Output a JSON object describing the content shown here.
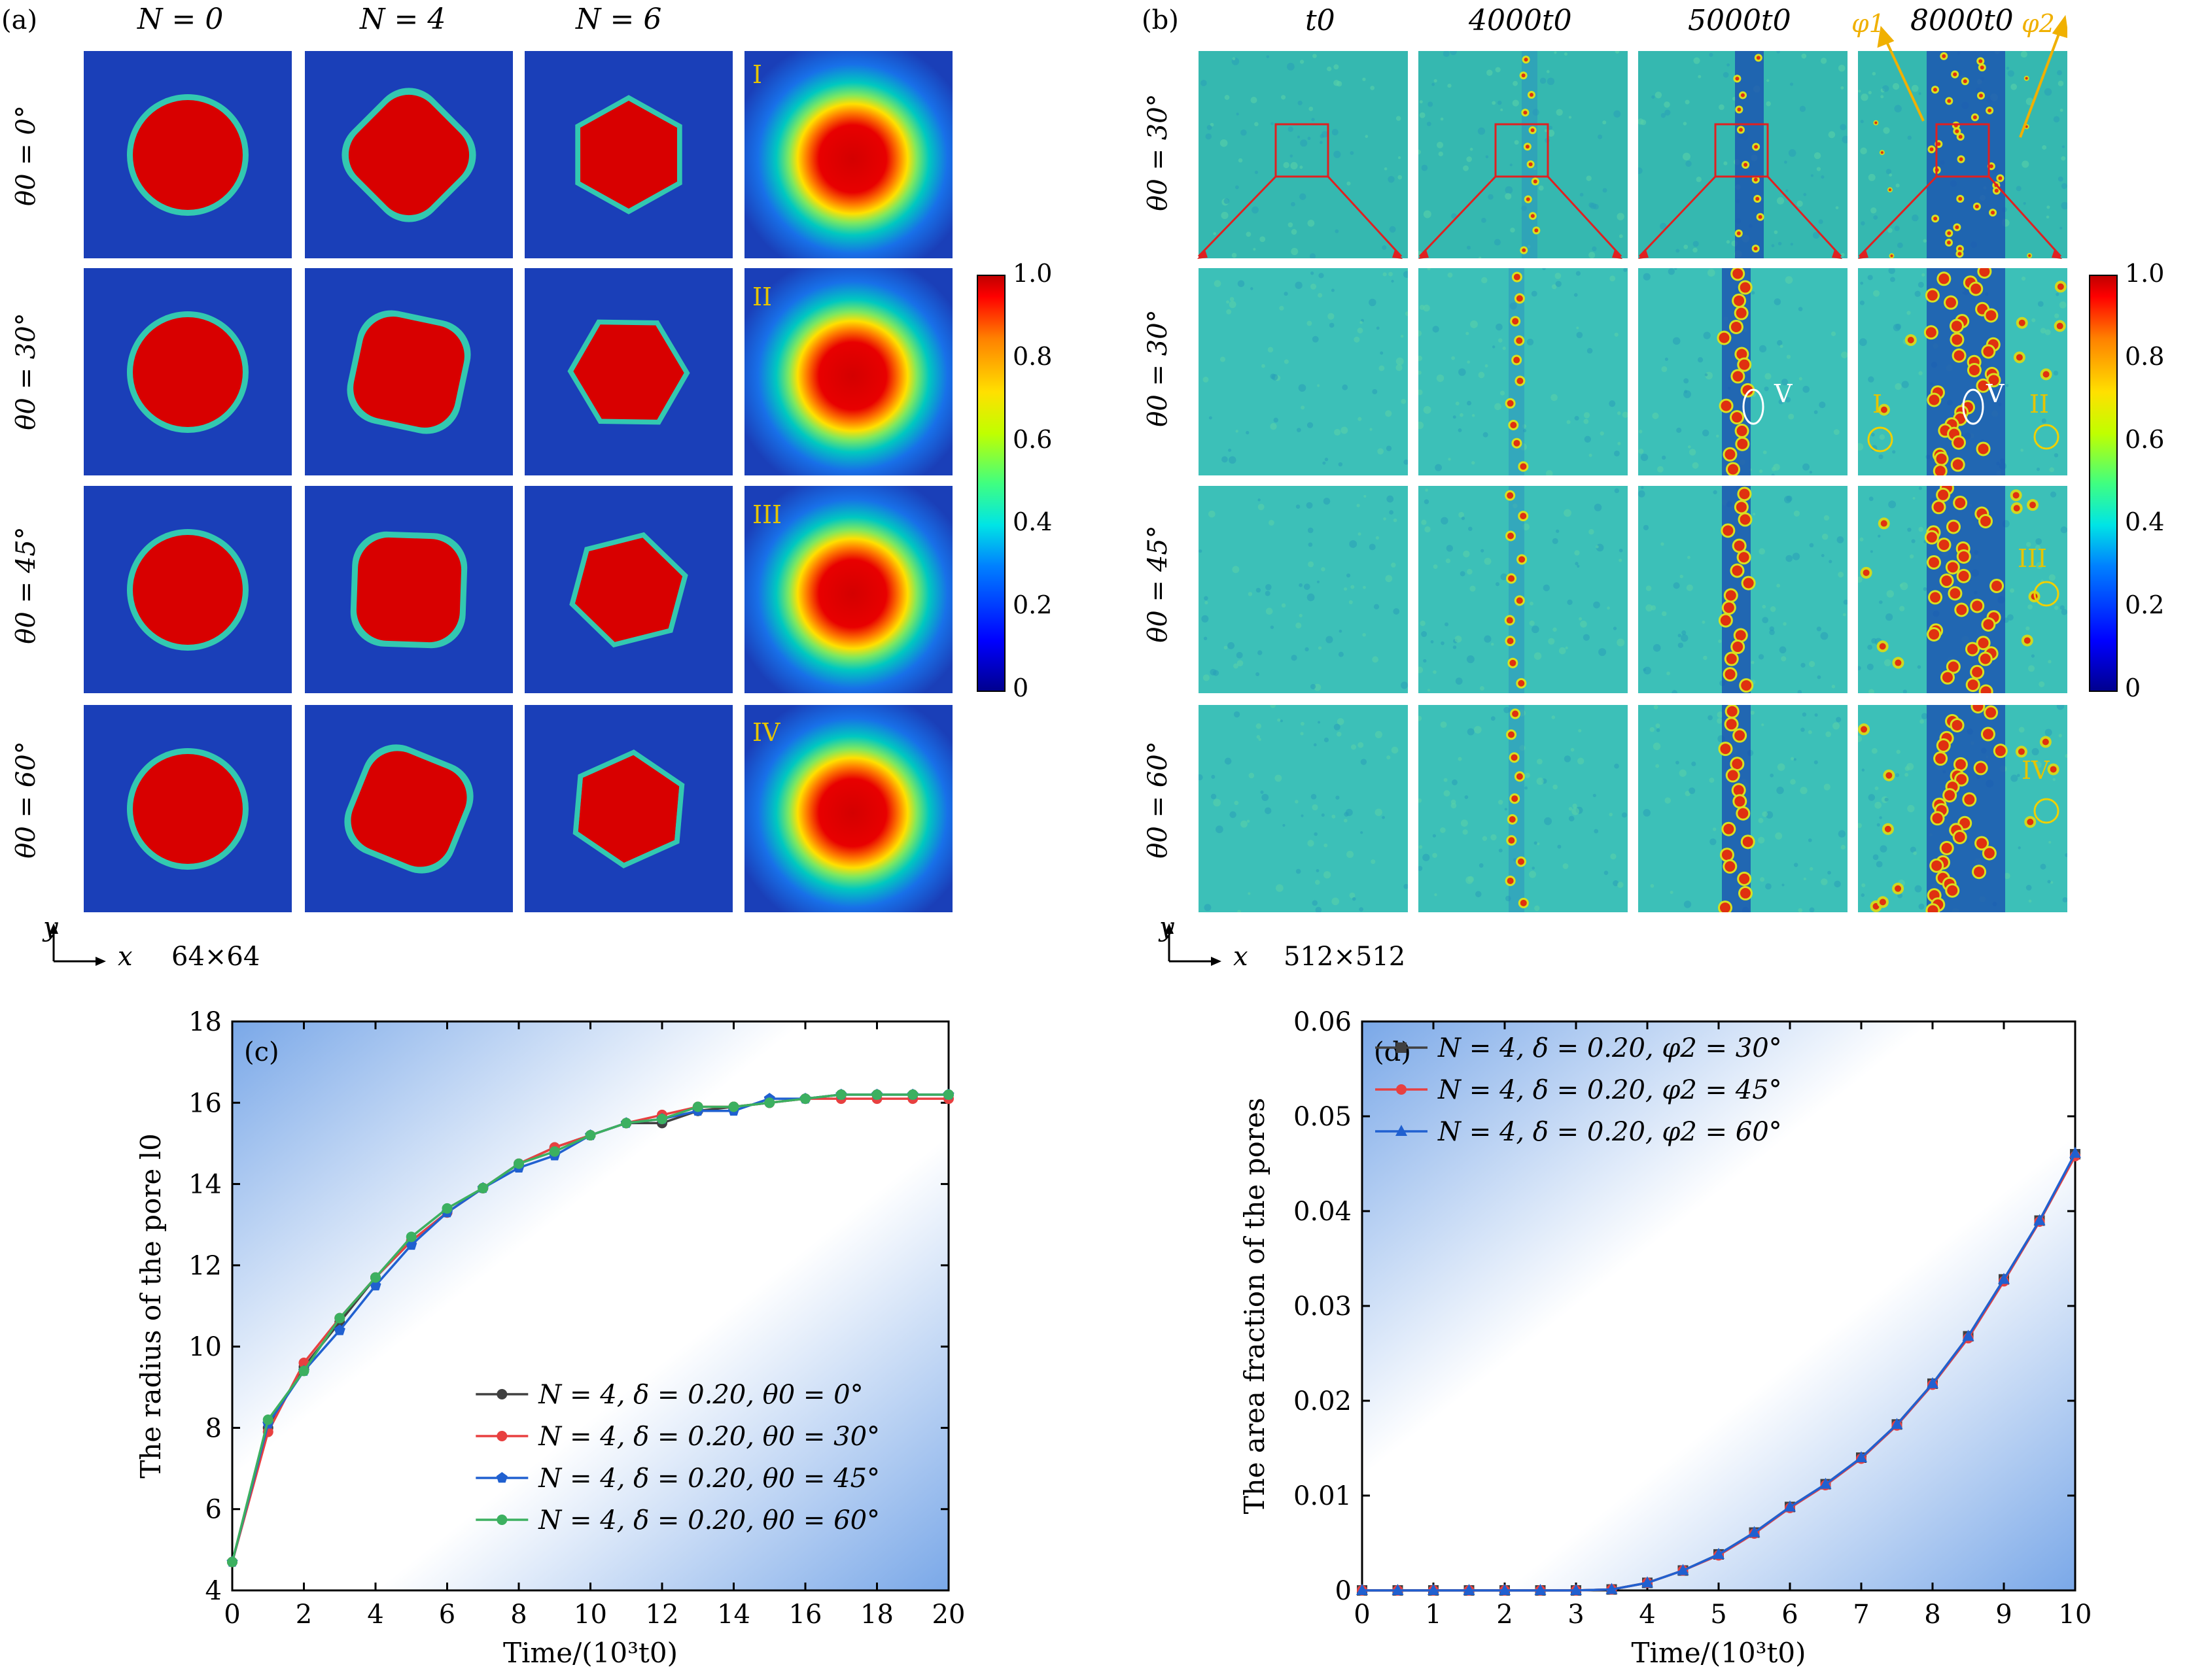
{
  "panel_a": {
    "tag": "(a)",
    "col_headers": [
      "N = 0",
      "N = 4",
      "N = 6"
    ],
    "row_labels": [
      "θ0 = 0°",
      "θ0 = 30°",
      "θ0 = 45°",
      "θ0 = 60°"
    ],
    "roman": [
      "I",
      "II",
      "III",
      "IV"
    ],
    "axis_y": "y",
    "axis_x": "x",
    "size": "64×64"
  },
  "panel_b": {
    "tag": "(b)",
    "col_headers": [
      "t0",
      "4000t0",
      "5000t0",
      "8000t0"
    ],
    "phi1": "φ1",
    "phi2": "φ2",
    "row_labels": [
      "θ0 = 30°",
      "θ0 = 30°",
      "θ0 = 45°",
      "θ0 = 60°"
    ],
    "marks": [
      "V",
      "V",
      "I",
      "II",
      "III",
      "IV"
    ],
    "axis_y": "y",
    "axis_x": "x",
    "size": "512×512"
  },
  "colorbar": {
    "ticks": [
      "1.0",
      "0.8",
      "0.6",
      "0.4",
      "0.2",
      "0"
    ]
  },
  "chart_data": [
    {
      "type": "line",
      "panel": "(c)",
      "xlabel": "Time/(10³t0)",
      "ylabel": "The radius of the pore l0",
      "xlim": [
        0,
        20
      ],
      "ylim": [
        4,
        18
      ],
      "xticks": [
        0,
        2,
        4,
        6,
        8,
        10,
        12,
        14,
        16,
        18,
        20
      ],
      "yticks": [
        4,
        6,
        8,
        10,
        12,
        14,
        16,
        18
      ],
      "legend_position": "bottom-right",
      "x": [
        0,
        1,
        2,
        3,
        4,
        5,
        6,
        7,
        8,
        9,
        10,
        11,
        12,
        13,
        14,
        15,
        16,
        17,
        18,
        19,
        20
      ],
      "series": [
        {
          "name": "N = 4, δ = 0.20, θ0 = 0°",
          "color": "#404040",
          "marker": "circle",
          "values": [
            4.7,
            8.0,
            9.5,
            10.6,
            11.7,
            12.6,
            13.3,
            13.9,
            14.5,
            14.9,
            15.2,
            15.5,
            15.5,
            15.8,
            15.9,
            16.0,
            16.1,
            16.2,
            16.2,
            16.2,
            16.2
          ]
        },
        {
          "name": "N = 4, δ = 0.20, θ0 = 30°",
          "color": "#e84040",
          "marker": "circle",
          "values": [
            4.7,
            7.9,
            9.6,
            10.7,
            11.7,
            12.6,
            13.3,
            13.9,
            14.5,
            14.9,
            15.2,
            15.5,
            15.7,
            15.9,
            15.9,
            16.0,
            16.1,
            16.1,
            16.1,
            16.1,
            16.1
          ]
        },
        {
          "name": "N = 4, δ = 0.20, θ0 = 45°",
          "color": "#2060d0",
          "marker": "pentagon",
          "values": [
            4.7,
            8.1,
            9.4,
            10.4,
            11.5,
            12.5,
            13.3,
            13.9,
            14.4,
            14.7,
            15.2,
            15.5,
            15.6,
            15.8,
            15.8,
            16.1,
            16.1,
            16.2,
            16.2,
            16.2,
            16.2
          ]
        },
        {
          "name": "N = 4, δ = 0.20, θ0 = 60°",
          "color": "#3cb060",
          "marker": "circle",
          "values": [
            4.7,
            8.2,
            9.4,
            10.7,
            11.7,
            12.7,
            13.4,
            13.9,
            14.5,
            14.8,
            15.2,
            15.5,
            15.6,
            15.9,
            15.9,
            16.0,
            16.1,
            16.2,
            16.2,
            16.2,
            16.2
          ]
        }
      ]
    },
    {
      "type": "line",
      "panel": "(d)",
      "xlabel": "Time/(10³t0)",
      "ylabel": "The area fraction of the pores",
      "xlim": [
        0,
        10
      ],
      "ylim": [
        0,
        0.06
      ],
      "xticks": [
        0,
        1,
        2,
        3,
        4,
        5,
        6,
        7,
        8,
        9,
        10
      ],
      "yticks": [
        "0",
        "0.01",
        "0.02",
        "0.03",
        "0.04",
        "0.05",
        "0.06"
      ],
      "legend_position": "top-left",
      "x": [
        0,
        0.5,
        1,
        1.5,
        2,
        2.5,
        3,
        3.5,
        4,
        4.5,
        5,
        5.5,
        6,
        6.5,
        7,
        7.5,
        8,
        8.5,
        9,
        9.5,
        10
      ],
      "series": [
        {
          "name": "N = 4, δ = 0.20, φ2 = 30°",
          "color": "#404040",
          "marker": "square",
          "values": [
            0,
            0,
            0,
            0,
            0,
            0,
            0,
            0.0001,
            0.0008,
            0.0021,
            0.0038,
            0.0061,
            0.0088,
            0.0112,
            0.014,
            0.0175,
            0.0218,
            0.0268,
            0.0328,
            0.039,
            0.046
          ]
        },
        {
          "name": "N = 4, δ = 0.20, φ2 = 45°",
          "color": "#e84040",
          "marker": "circle",
          "values": [
            0,
            0,
            0,
            0,
            0,
            0,
            0,
            0.0001,
            0.0008,
            0.0021,
            0.0037,
            0.006,
            0.0087,
            0.0111,
            0.0139,
            0.0174,
            0.0217,
            0.0266,
            0.0326,
            0.0389,
            0.0458
          ]
        },
        {
          "name": "N = 4, δ = 0.20, φ2 = 60°",
          "color": "#2060d0",
          "marker": "triangle",
          "values": [
            0,
            0,
            0,
            0,
            0,
            0,
            0,
            0.0001,
            0.0008,
            0.0021,
            0.0038,
            0.0061,
            0.0088,
            0.0112,
            0.014,
            0.0175,
            0.0218,
            0.0268,
            0.0328,
            0.039,
            0.0461
          ]
        }
      ]
    }
  ]
}
